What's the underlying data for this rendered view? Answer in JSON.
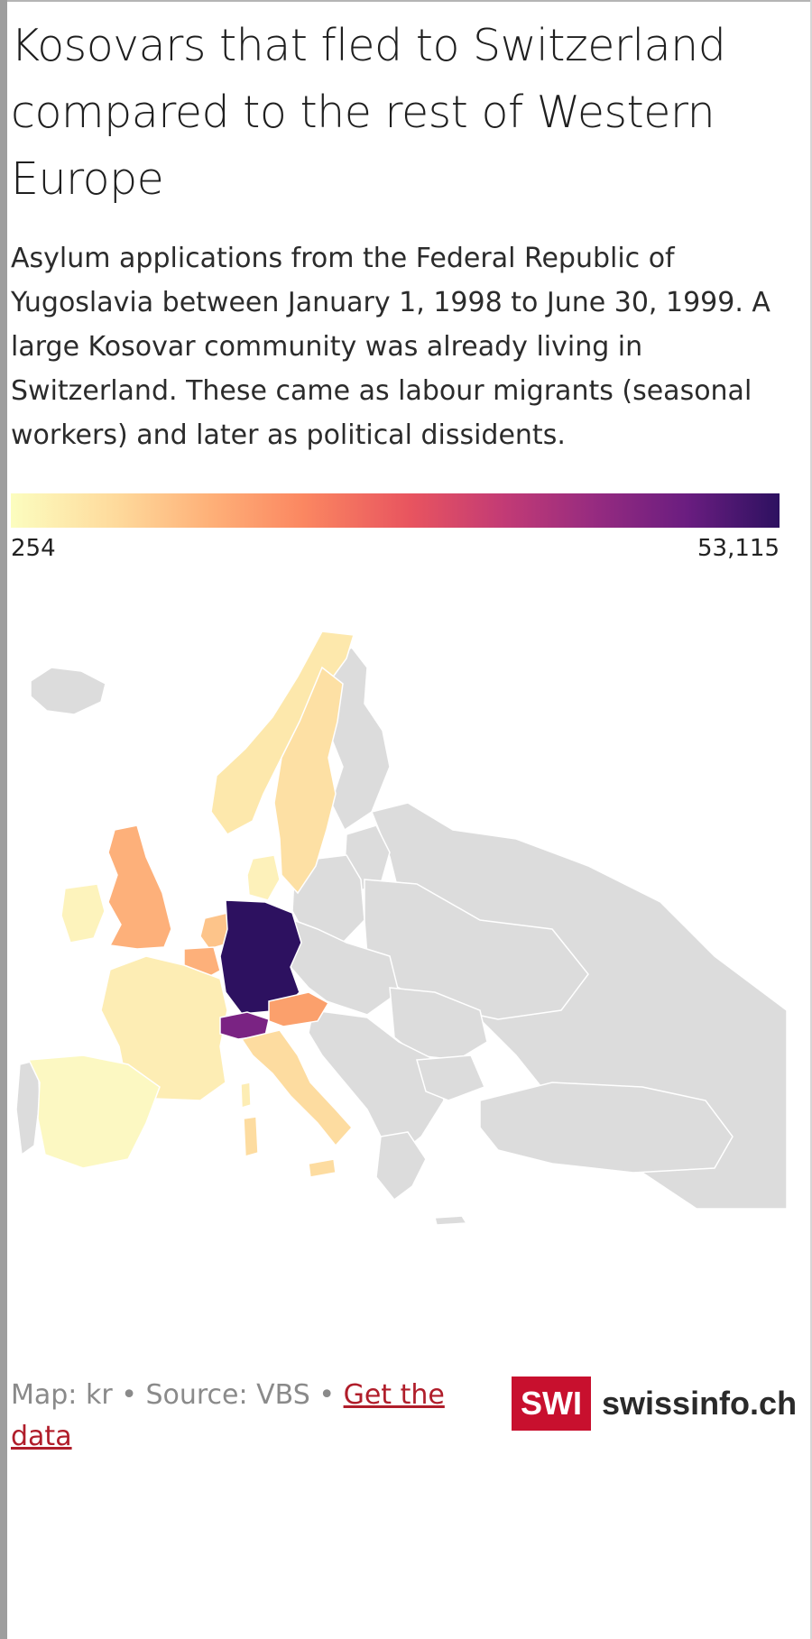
{
  "title": "Kosovars that fled to Switzerland compared to the rest of Western Europe",
  "subtitle": "Asylum applications from the Federal Republic of Yugoslavia between January 1, 1998 to June 30, 1999. A large Kosovar community was already living in Switzerland. These came as labour migrants (seasonal workers) and later as political dissidents.",
  "legend": {
    "min_label": "254",
    "max_label": "53,115",
    "min": 254,
    "max": 53115,
    "scale": "magma (light yellow → dark purple)"
  },
  "colors": {
    "no_data": "#dcdcdc",
    "border": "#ffffff",
    "accent_link": "#b01d2a",
    "brand_red": "#c8102e"
  },
  "map": {
    "type": "choropleth",
    "region": "Europe",
    "countries": [
      {
        "name": "Germany",
        "level": "highest",
        "color": "#2d1160"
      },
      {
        "name": "Switzerland",
        "level": "high",
        "color": "#7a2383"
      },
      {
        "name": "Austria",
        "level": "mid",
        "color": "#fba06c"
      },
      {
        "name": "United Kingdom",
        "level": "mid",
        "color": "#fdb07a"
      },
      {
        "name": "Belgium",
        "level": "mid",
        "color": "#fdb07a"
      },
      {
        "name": "Netherlands",
        "level": "low-mid",
        "color": "#fdc48a"
      },
      {
        "name": "Sweden",
        "level": "low",
        "color": "#fde0a4"
      },
      {
        "name": "Norway",
        "level": "low",
        "color": "#fde8ac"
      },
      {
        "name": "Italy",
        "level": "low",
        "color": "#fddca0"
      },
      {
        "name": "France",
        "level": "low",
        "color": "#fdedb4"
      },
      {
        "name": "Denmark",
        "level": "low",
        "color": "#fdf1ba"
      },
      {
        "name": "Ireland",
        "level": "low",
        "color": "#fdf3bc"
      },
      {
        "name": "Spain",
        "level": "lowest",
        "color": "#fcf8c2"
      },
      {
        "name": "Portugal",
        "level": "no data",
        "color": "#dcdcdc"
      }
    ]
  },
  "footer": {
    "map_credit": "Map: kr",
    "separator": "•",
    "source": "Source: VBS",
    "data_link": "Get the data",
    "logo_box": "SWI",
    "logo_text": "swissinfo.ch"
  }
}
